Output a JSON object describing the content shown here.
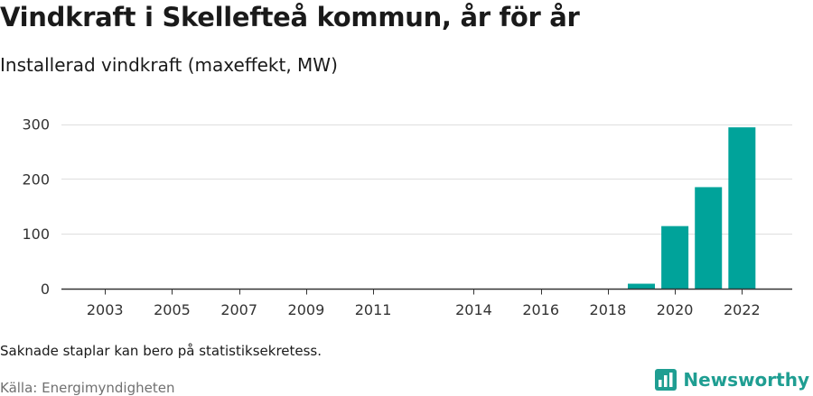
{
  "title": "Vindkraft i Skellefteå kommun, år för år",
  "subtitle": "Installerad vindkraft (maxeffekt, MW)",
  "note": "Saknade staplar kan bero på statistiksekretess.",
  "source": "Källa: Energimyndigheten",
  "brand": {
    "name": "Newsworthy",
    "color": "#1f9e92",
    "icon": "newsworthy-logo-icon"
  },
  "chart_data": {
    "type": "bar",
    "x_tick_labels": [
      "2003",
      "2005",
      "2007",
      "2009",
      "2011",
      "2014",
      "2016",
      "2018",
      "2020",
      "2022"
    ],
    "y_tick_labels": [
      "0",
      "100",
      "200",
      "300"
    ],
    "ylim": [
      0,
      330
    ],
    "xlim": [
      2001.7,
      2023.5
    ],
    "grid": true,
    "bar_color": "#00a39a",
    "series": [
      {
        "x": [
          2019,
          2020,
          2021,
          2022
        ],
        "values": [
          9,
          114,
          185,
          294
        ]
      }
    ]
  }
}
